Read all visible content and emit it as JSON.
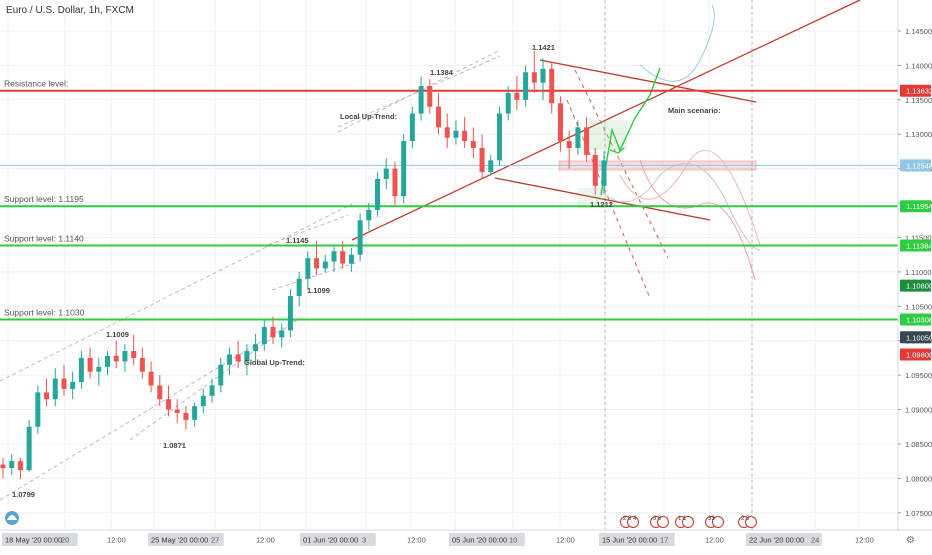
{
  "header": {
    "symbol_title": "Euro / U.S. Dollar, 1h, FXCM"
  },
  "chart_data": {
    "type": "candlestick",
    "title": "Euro / U.S. Dollar, 1h, FXCM",
    "ylim": [
      1.0725,
      1.1495
    ],
    "y_ticks": [
      "1.14500",
      "1.14000",
      "1.13500",
      "1.13000",
      "1.12500",
      "1.12000",
      "1.11500",
      "1.11000",
      "1.10500",
      "1.10000",
      "1.09500",
      "1.09000",
      "1.08500",
      "1.08000",
      "1.07500"
    ],
    "x_ticks": [
      "18 May '20  00:00",
      "20",
      "12:00",
      "25 May '20  00:00",
      "27",
      "12:00",
      "01 Jun '20  00:00",
      "3",
      "12:00",
      "05 Jun '20  00:00",
      "10",
      "12:00",
      "15 Jun '20  00:00",
      "17",
      "12:00",
      "22 Jun '20  00:00",
      "24",
      "12:00"
    ],
    "highlighted_x_ticks": [
      "18 May '20  00:00",
      "25 May '20  00:00",
      "01 Jun '20  00:00",
      "05 Jun '20  00:00",
      "15 Jun '20  00:00",
      "22 Jun '20  00:00"
    ],
    "price_tags": [
      {
        "label": "1.13632",
        "value": 1.13632,
        "color": "#e53935"
      },
      {
        "label": "1.12548",
        "value": 1.12548,
        "color": "#8fc7e4"
      },
      {
        "label": "1.11954",
        "value": 1.11954,
        "color": "#2ecc40"
      },
      {
        "label": "1.11384",
        "value": 1.11384,
        "color": "#2ecc40"
      },
      {
        "label": "1.10800",
        "value": 1.108,
        "color": "#1e8e3e"
      },
      {
        "label": "1.10308",
        "value": 1.10308,
        "color": "#2ecc40"
      },
      {
        "label": "1.10050",
        "value": 1.1005,
        "color": "#37474f"
      },
      {
        "label": "1.09800",
        "value": 1.098,
        "color": "#e53935"
      }
    ],
    "horizontal_levels": [
      {
        "label": "Resistance level:",
        "value": 1.13632,
        "color": "#e53935"
      },
      {
        "label": "Support level: 1.1195",
        "value": 1.11954,
        "color": "#2ecc40"
      },
      {
        "label": "Support level: 1.1140",
        "value": 1.11384,
        "color": "#2ecc40"
      },
      {
        "label": "Support level: 1.1030",
        "value": 1.10308,
        "color": "#2ecc40"
      }
    ],
    "current_price_line": 1.12548,
    "annotations": [
      {
        "text": "1.1421",
        "value": 1.1421
      },
      {
        "text": "1.1384",
        "value": 1.1384
      },
      {
        "text": "Local Up-Trend:",
        "value": 1.134
      },
      {
        "text": "Main scenario:",
        "value": 1.135
      },
      {
        "text": "1.1145",
        "value": 1.1145
      },
      {
        "text": "1.1099",
        "value": 1.1099
      },
      {
        "text": "1.1009",
        "value": 1.1009
      },
      {
        "text": "Global Up-Trend:",
        "value": 1.099
      },
      {
        "text": "1.0871",
        "value": 1.0871
      },
      {
        "text": "1.0799",
        "value": 1.0799
      },
      {
        "text": "1.1212",
        "value": 1.1212
      }
    ],
    "event_badges": [
      "2 3 4",
      "3 8",
      "1 1",
      "33",
      "2 3"
    ],
    "grid": true,
    "series": [
      {
        "name": "",
        "type": "candlestick",
        "points": [
          [
            1.082,
            1.083,
            1.08,
            1.0815
          ],
          [
            1.0815,
            1.0835,
            1.0805,
            1.0825
          ],
          [
            1.0825,
            1.083,
            1.0799,
            1.0812
          ],
          [
            1.0812,
            1.0885,
            1.081,
            1.0875
          ],
          [
            1.0875,
            1.0935,
            1.0865,
            1.0925
          ],
          [
            1.0925,
            1.0945,
            1.0905,
            1.0915
          ],
          [
            1.0915,
            1.096,
            1.0905,
            1.0945
          ],
          [
            1.0945,
            1.0965,
            1.092,
            1.093
          ],
          [
            1.093,
            1.0955,
            1.0915,
            1.094
          ],
          [
            1.094,
            1.0985,
            1.093,
            1.0975
          ],
          [
            1.0975,
            1.099,
            1.0945,
            1.0955
          ],
          [
            1.0955,
            1.0975,
            1.0935,
            1.0962
          ],
          [
            1.0962,
            1.0985,
            1.095,
            1.0978
          ],
          [
            1.0978,
            1.1,
            1.096,
            1.097
          ],
          [
            1.097,
            1.0995,
            1.0955,
            1.0985
          ],
          [
            1.0985,
            1.1009,
            1.0965,
            1.0975
          ],
          [
            1.0975,
            1.099,
            1.0945,
            1.0955
          ],
          [
            1.0955,
            1.097,
            1.0925,
            1.0935
          ],
          [
            1.0935,
            1.095,
            1.0905,
            1.0915
          ],
          [
            1.0915,
            1.0935,
            1.089,
            1.09
          ],
          [
            1.09,
            1.0915,
            1.088,
            1.0895
          ],
          [
            1.0895,
            1.0905,
            1.0871,
            1.0885
          ],
          [
            1.0885,
            1.091,
            1.0875,
            1.0905
          ],
          [
            1.0905,
            1.093,
            1.0895,
            1.092
          ],
          [
            1.092,
            1.0945,
            1.091,
            1.0935
          ],
          [
            1.0935,
            1.0975,
            1.0925,
            1.0965
          ],
          [
            1.0965,
            1.099,
            1.095,
            1.098
          ],
          [
            1.098,
            1.1,
            1.096,
            1.097
          ],
          [
            1.097,
            1.0995,
            1.095,
            1.0985
          ],
          [
            1.0985,
            1.101,
            1.097,
            1.0995
          ],
          [
            1.0995,
            1.103,
            1.0985,
            1.102
          ],
          [
            1.102,
            1.1035,
            1.0995,
            1.1005
          ],
          [
            1.1005,
            1.1025,
            1.099,
            1.1015
          ],
          [
            1.1015,
            1.1075,
            1.1005,
            1.1065
          ],
          [
            1.1065,
            1.11,
            1.105,
            1.109
          ],
          [
            1.109,
            1.113,
            1.1075,
            1.112
          ],
          [
            1.112,
            1.1145,
            1.1095,
            1.1105
          ],
          [
            1.1105,
            1.1125,
            1.1099,
            1.1115
          ],
          [
            1.1115,
            1.114,
            1.11,
            1.113
          ],
          [
            1.113,
            1.1145,
            1.1105,
            1.1112
          ],
          [
            1.1112,
            1.1135,
            1.11,
            1.1125
          ],
          [
            1.1125,
            1.1185,
            1.1115,
            1.1175
          ],
          [
            1.1175,
            1.12,
            1.116,
            1.119
          ],
          [
            1.119,
            1.1245,
            1.118,
            1.1235
          ],
          [
            1.1235,
            1.1265,
            1.122,
            1.125
          ],
          [
            1.125,
            1.126,
            1.1195,
            1.121
          ],
          [
            1.121,
            1.13,
            1.12,
            1.129
          ],
          [
            1.129,
            1.134,
            1.128,
            1.133
          ],
          [
            1.133,
            1.1384,
            1.132,
            1.137
          ],
          [
            1.137,
            1.138,
            1.133,
            1.134
          ],
          [
            1.134,
            1.136,
            1.13,
            1.131
          ],
          [
            1.131,
            1.133,
            1.128,
            1.1295
          ],
          [
            1.1295,
            1.132,
            1.1285,
            1.1305
          ],
          [
            1.1305,
            1.1325,
            1.128,
            1.129
          ],
          [
            1.129,
            1.131,
            1.1265,
            1.128
          ],
          [
            1.128,
            1.13,
            1.1235,
            1.1245
          ],
          [
            1.1245,
            1.127,
            1.124,
            1.1262
          ],
          [
            1.1262,
            1.134,
            1.1255,
            1.133
          ],
          [
            1.133,
            1.137,
            1.132,
            1.136
          ],
          [
            1.136,
            1.1385,
            1.1335,
            1.135
          ],
          [
            1.135,
            1.14,
            1.134,
            1.139
          ],
          [
            1.139,
            1.1421,
            1.136,
            1.1375
          ],
          [
            1.1375,
            1.141,
            1.135,
            1.1395
          ],
          [
            1.1395,
            1.1405,
            1.133,
            1.1345
          ],
          [
            1.1345,
            1.1355,
            1.1275,
            1.129
          ],
          [
            1.129,
            1.1305,
            1.125,
            1.128
          ],
          [
            1.128,
            1.132,
            1.127,
            1.131
          ],
          [
            1.131,
            1.1325,
            1.126,
            1.127
          ],
          [
            1.127,
            1.128,
            1.1212,
            1.1225
          ],
          [
            1.1225,
            1.1275,
            1.1215,
            1.1262
          ]
        ]
      }
    ]
  }
}
